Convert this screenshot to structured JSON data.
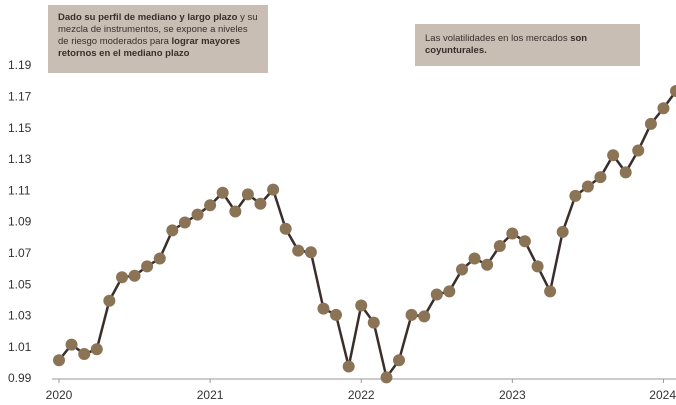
{
  "chart_data": {
    "type": "line",
    "x": [
      2020,
      2020.083,
      2020.167,
      2020.25,
      2020.333,
      2020.417,
      2020.5,
      2020.583,
      2020.667,
      2020.75,
      2020.833,
      2020.917,
      2021,
      2021.083,
      2021.167,
      2021.25,
      2021.333,
      2021.417,
      2021.5,
      2021.583,
      2021.667,
      2021.75,
      2021.833,
      2021.917,
      2022,
      2022.083,
      2022.167,
      2022.25,
      2022.333,
      2022.417,
      2022.5,
      2022.583,
      2022.667,
      2022.75,
      2022.833,
      2022.917,
      2023,
      2023.083,
      2023.167,
      2023.25,
      2023.333,
      2023.417,
      2023.5,
      2023.583,
      2023.667,
      2023.75,
      2023.833,
      2023.917,
      2024,
      2024.083
    ],
    "series": [
      {
        "color": "#3a2e2c",
        "marker_color": "#8b7355",
        "values": [
          1.002,
          1.012,
          1.006,
          1.009,
          1.04,
          1.055,
          1.056,
          1.062,
          1.067,
          1.085,
          1.09,
          1.095,
          1.101,
          1.109,
          1.097,
          1.108,
          1.102,
          1.111,
          1.086,
          1.072,
          1.071,
          1.035,
          1.031,
          0.998,
          1.037,
          1.026,
          0.991,
          1.002,
          1.031,
          1.03,
          1.044,
          1.046,
          1.06,
          1.067,
          1.063,
          1.075,
          1.083,
          1.078,
          1.062,
          1.046,
          1.084,
          1.107,
          1.113,
          1.119,
          1.133,
          1.122,
          1.136,
          1.153,
          1.163,
          1.174
        ]
      }
    ],
    "xlim": [
      2020,
      2024.083
    ],
    "xticks": [
      2020,
      2021,
      2022,
      2023,
      2024
    ],
    "ylim": [
      0.99,
      1.19
    ],
    "yticks": [
      0.99,
      1.01,
      1.03,
      1.05,
      1.07,
      1.09,
      1.11,
      1.13,
      1.15,
      1.17,
      1.19
    ],
    "grid": false,
    "annotations": [
      [
        {
          "text": "Dado su perfil de mediano y largo plazo",
          "bold": true
        },
        {
          "text": " y su mezcla de instrumentos, se expone a niveles de riesgo moderados para ",
          "bold": false
        },
        {
          "text": "lograr mayores retornos en el mediano plazo",
          "bold": true
        }
      ],
      [
        {
          "text": "Las volatilidades en los mercados ",
          "bold": false
        },
        {
          "text": "son coyunturales.",
          "bold": true
        }
      ]
    ]
  }
}
